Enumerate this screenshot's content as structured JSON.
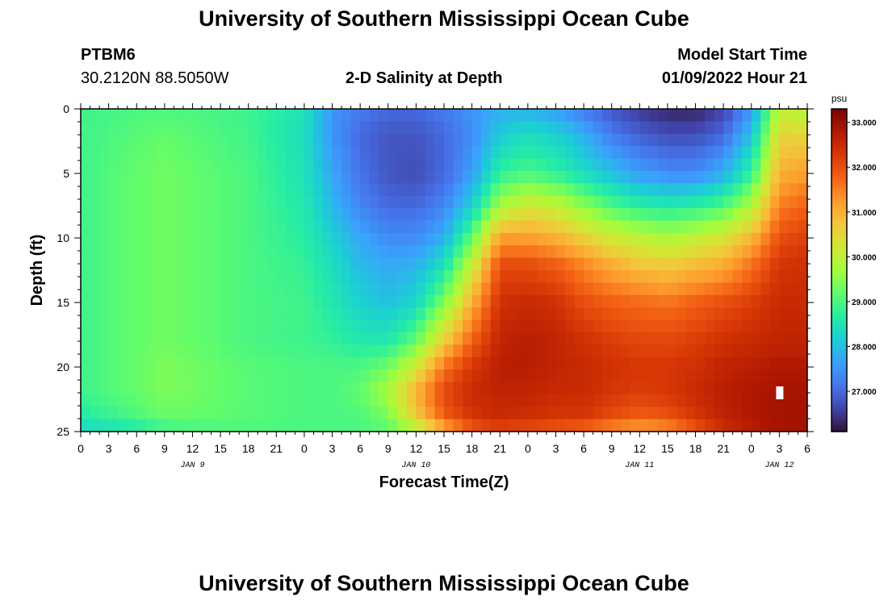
{
  "header": {
    "title": "University of Southern Mississippi Ocean Cube",
    "station": "PTBM6",
    "coords": "30.2120N  88.5050W",
    "plot_name": "2-D Salinity at Depth",
    "model_start_label": "Model Start Time",
    "model_start_value": "01/09/2022 Hour 21"
  },
  "footer": {
    "title": "University of Southern Mississippi Ocean Cube"
  },
  "chart_data": {
    "type": "heatmap",
    "title": "2-D Salinity at Depth",
    "xlabel": "Forecast Time(Z)",
    "ylabel": "Depth (ft)",
    "x_ticks": [
      "0",
      "3",
      "6",
      "9",
      "12",
      "15",
      "18",
      "21",
      "0",
      "3",
      "6",
      "9",
      "12",
      "15",
      "18",
      "21",
      "0",
      "3",
      "6",
      "9",
      "12",
      "15",
      "18",
      "21",
      "0",
      "3",
      "6"
    ],
    "date_labels": [
      {
        "label": "JAN 9",
        "tick_index": 4
      },
      {
        "label": "JAN 10",
        "tick_index": 12
      },
      {
        "label": "JAN 11",
        "tick_index": 20
      },
      {
        "label": "JAN 12",
        "tick_index": 25
      }
    ],
    "x_range_hours": [
      0,
      78
    ],
    "y_ticks": [
      0,
      5,
      10,
      15,
      20,
      25
    ],
    "ylim": [
      0,
      25
    ],
    "colorbar": {
      "unit": "psu",
      "min": 26.1,
      "max": 33.3,
      "tick_values": [
        33,
        32,
        31,
        30,
        29,
        28,
        27
      ],
      "tick_labels": [
        "33.000",
        "32.000",
        "31.000",
        "30.000",
        "29.000",
        "28.000",
        "27.000"
      ],
      "palette": [
        "#30123b",
        "#4145ab",
        "#4675ed",
        "#39a2fc",
        "#1bcfd4",
        "#24eca6",
        "#61fc6c",
        "#a4fc3b",
        "#d1e834",
        "#f3c63a",
        "#fe9b2d",
        "#f36315",
        "#d93806",
        "#b11901",
        "#7a0403"
      ]
    },
    "grid": {
      "times_hours": [
        0,
        6,
        9,
        12,
        18,
        24,
        27,
        30,
        33,
        36,
        39,
        42,
        45,
        48,
        51,
        54,
        57,
        60,
        63,
        66,
        69,
        72,
        75,
        78
      ],
      "depths_ft": [
        0,
        2,
        5,
        7.5,
        10,
        12,
        15,
        18,
        20,
        22,
        24,
        25
      ],
      "values_psu": [
        [
          28.9,
          29.0,
          29.0,
          29.0,
          28.9,
          28.5,
          27.5,
          27.2,
          27.0,
          27.0,
          27.2,
          27.5,
          27.8,
          27.8,
          27.6,
          27.2,
          26.8,
          26.5,
          26.3,
          26.3,
          26.6,
          27.5,
          30.0,
          29.8
        ],
        [
          28.9,
          29.1,
          29.2,
          29.1,
          28.9,
          28.4,
          27.5,
          27.0,
          26.8,
          26.8,
          27.0,
          27.4,
          28.1,
          28.4,
          28.2,
          27.8,
          27.2,
          26.9,
          26.7,
          26.7,
          27.0,
          28.0,
          30.5,
          30.5
        ],
        [
          28.9,
          29.2,
          29.3,
          29.2,
          29.0,
          28.5,
          27.7,
          27.1,
          26.8,
          26.7,
          27.0,
          27.6,
          28.8,
          29.0,
          28.8,
          28.4,
          28.0,
          27.6,
          27.4,
          27.4,
          27.8,
          28.8,
          31.0,
          31.2
        ],
        [
          28.9,
          29.2,
          29.3,
          29.2,
          29.0,
          28.6,
          27.9,
          27.3,
          27.0,
          27.0,
          27.3,
          28.2,
          29.7,
          30.2,
          30.0,
          29.5,
          29.0,
          28.7,
          28.6,
          28.7,
          29.0,
          29.8,
          31.5,
          31.8
        ],
        [
          28.9,
          29.2,
          29.3,
          29.2,
          29.0,
          28.7,
          28.2,
          27.7,
          27.4,
          27.4,
          27.8,
          29.2,
          31.2,
          31.2,
          31.0,
          30.6,
          30.2,
          30.0,
          29.8,
          30.0,
          30.3,
          30.9,
          32.0,
          32.2
        ],
        [
          28.9,
          29.2,
          29.3,
          29.2,
          29.0,
          28.8,
          28.4,
          27.9,
          27.7,
          27.8,
          28.4,
          30.0,
          32.0,
          32.0,
          31.8,
          31.4,
          31.0,
          30.7,
          30.6,
          30.8,
          31.0,
          31.6,
          32.3,
          32.4
        ],
        [
          28.9,
          29.2,
          29.3,
          29.2,
          29.0,
          28.9,
          28.6,
          28.2,
          28.0,
          28.3,
          29.4,
          31.0,
          32.4,
          32.5,
          32.4,
          32.0,
          31.8,
          31.7,
          31.6,
          31.8,
          32.0,
          32.2,
          32.5,
          32.5
        ],
        [
          28.9,
          29.2,
          29.3,
          29.2,
          29.0,
          28.9,
          28.8,
          28.6,
          28.6,
          29.2,
          30.6,
          31.8,
          32.6,
          32.7,
          32.6,
          32.4,
          32.2,
          32.1,
          32.1,
          32.2,
          32.4,
          32.5,
          32.6,
          32.6
        ],
        [
          28.9,
          29.2,
          29.4,
          29.3,
          29.1,
          29.0,
          29.0,
          29.0,
          29.3,
          30.2,
          31.6,
          32.3,
          32.7,
          32.7,
          32.6,
          32.5,
          32.4,
          32.3,
          32.3,
          32.4,
          32.6,
          32.7,
          32.8,
          32.8
        ],
        [
          28.9,
          29.2,
          29.4,
          29.3,
          29.1,
          29.0,
          29.0,
          29.2,
          29.8,
          31.0,
          32.1,
          32.5,
          32.6,
          32.6,
          32.5,
          32.5,
          32.3,
          32.2,
          32.3,
          32.5,
          32.7,
          32.8,
          32.9,
          32.9
        ],
        [
          28.6,
          29.0,
          29.2,
          29.2,
          29.1,
          29.0,
          29.0,
          29.0,
          29.3,
          30.6,
          31.8,
          32.3,
          32.5,
          32.4,
          32.3,
          32.3,
          32.0,
          31.8,
          31.9,
          32.3,
          32.6,
          32.8,
          32.9,
          32.9
        ],
        [
          28.2,
          28.5,
          28.8,
          28.9,
          29.0,
          29.0,
          29.0,
          29.0,
          29.1,
          29.6,
          30.8,
          31.8,
          32.0,
          31.9,
          31.8,
          31.6,
          31.2,
          31.0,
          31.2,
          31.8,
          32.4,
          32.7,
          32.9,
          32.9
        ]
      ]
    },
    "marker": {
      "time_hours": 75,
      "depth_ft": 22
    }
  }
}
